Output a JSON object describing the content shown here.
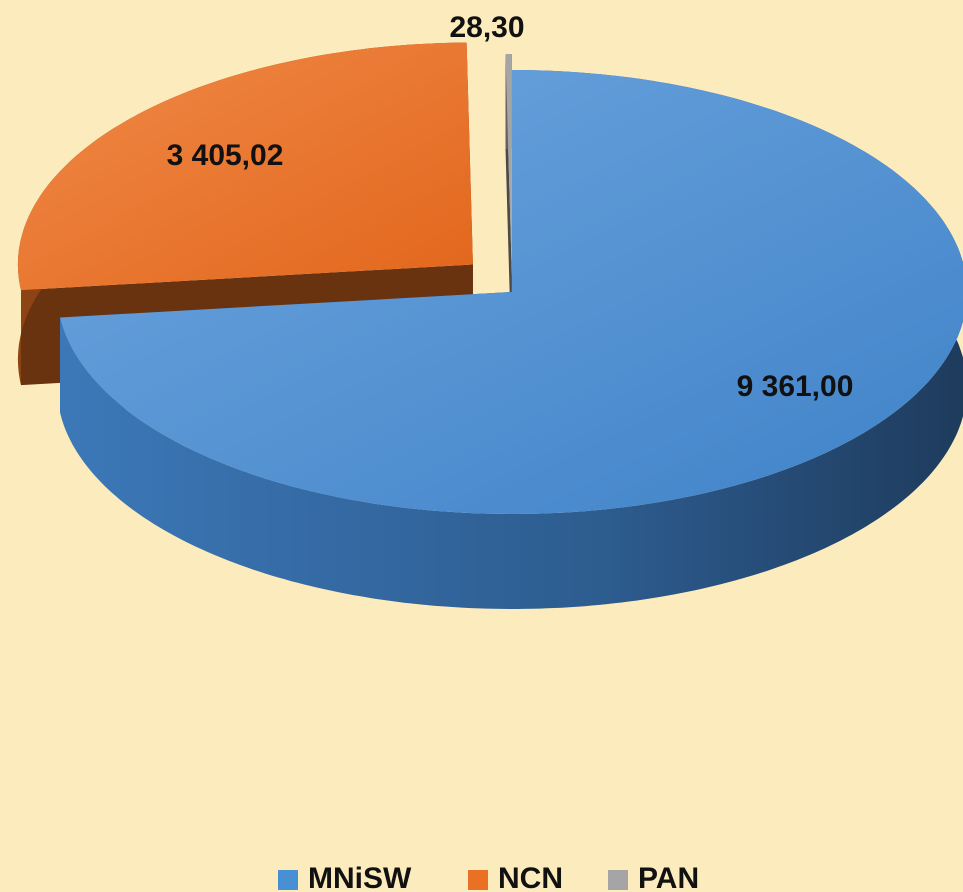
{
  "chart_data": {
    "type": "pie3d",
    "categories": [
      "MNiSW",
      "NCN",
      "PAN"
    ],
    "values": [
      9361.0,
      3405.02,
      28.3
    ],
    "value_labels": [
      "9 361,00",
      "3 405,02",
      "28,30"
    ],
    "colors": [
      "#4a8ed4",
      "#ea7123",
      "#a5a5a5"
    ],
    "legend": "bottom"
  }
}
